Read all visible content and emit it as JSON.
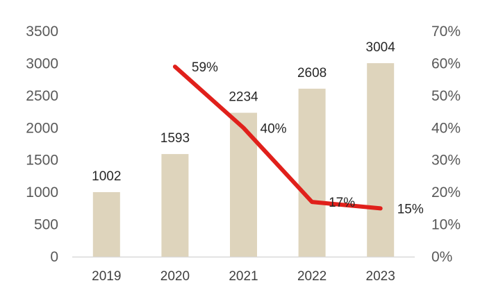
{
  "chart_data": {
    "type": "bar",
    "categories": [
      "2019",
      "2020",
      "2021",
      "2022",
      "2023"
    ],
    "series": [
      {
        "type": "bar",
        "axis": "left",
        "values": [
          1002,
          1593,
          2234,
          2608,
          3004
        ],
        "labels": [
          "1002",
          "1593",
          "2234",
          "2608",
          "3004"
        ]
      },
      {
        "type": "line",
        "axis": "right",
        "values": [
          null,
          59,
          40,
          17,
          15
        ],
        "labels": [
          "",
          "59%",
          "40%",
          "17%",
          "15%"
        ]
      }
    ],
    "y_left": {
      "min": 0,
      "max": 3500,
      "ticks": [
        "0",
        "500",
        "1000",
        "1500",
        "2000",
        "2500",
        "3000",
        "3500"
      ]
    },
    "y_right": {
      "min": 0,
      "max": 70,
      "ticks": [
        "0%",
        "10%",
        "20%",
        "30%",
        "40%",
        "50%",
        "60%",
        "70%"
      ]
    },
    "title": "",
    "xlabel": "",
    "ylabel": "",
    "grid": false,
    "legend": "none",
    "colors": {
      "bar": "#ded4bc",
      "line": "#e0201b",
      "axis": "#d9d9d9"
    }
  }
}
